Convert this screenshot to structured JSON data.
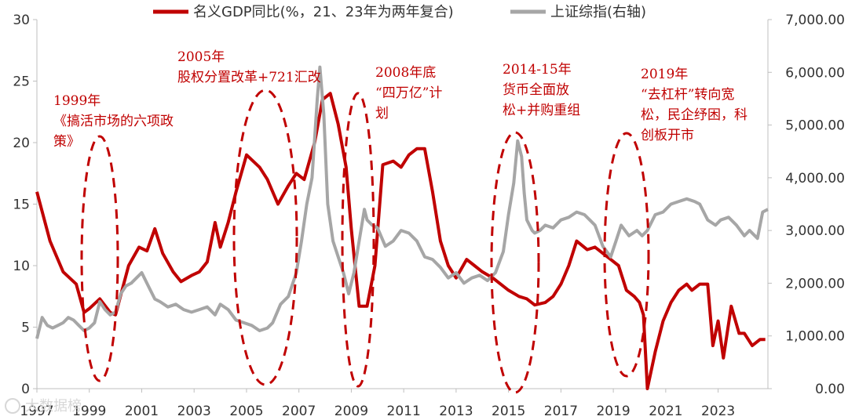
{
  "chart_data": {
    "type": "line",
    "title": "",
    "xlabel": "",
    "ylabel": "",
    "x_ticks": [
      "1997",
      "1999",
      "2001",
      "2003",
      "2005",
      "2007",
      "2009",
      "2011",
      "2013",
      "2015",
      "2017",
      "2019",
      "2021",
      "2023"
    ],
    "y_left_ticks": [
      "0",
      "5",
      "10",
      "15",
      "20",
      "25",
      "30"
    ],
    "y_right_ticks": [
      "0.00",
      "1,000.00",
      "2,000.00",
      "3,000.00",
      "4,000.00",
      "5,000.00",
      "6,000.00",
      "7,000.00"
    ],
    "ylim_left": [
      0,
      30
    ],
    "ylim_right": [
      0,
      7000
    ],
    "xlim": [
      1997.0,
      2024.9
    ],
    "series": [
      {
        "name": "名义GDP同比(%，21、23年为两年复合)",
        "axis": "left",
        "color": "#c00000",
        "x": [
          1997.0,
          1997.5,
          1998.0,
          1998.5,
          1998.8,
          1999.0,
          1999.4,
          1999.8,
          2000.0,
          2000.5,
          2000.9,
          2001.2,
          2001.5,
          2001.8,
          2002.2,
          2002.5,
          2002.9,
          2003.2,
          2003.5,
          2003.8,
          2004.0,
          2004.3,
          2004.6,
          2005.0,
          2005.5,
          2005.8,
          2006.2,
          2006.6,
          2006.9,
          2007.2,
          2007.6,
          2007.9,
          2008.2,
          2008.5,
          2008.8,
          2009.0,
          2009.3,
          2009.6,
          2009.9,
          2010.2,
          2010.6,
          2010.9,
          2011.2,
          2011.5,
          2011.8,
          2012.1,
          2012.4,
          2012.7,
          2013.0,
          2013.4,
          2013.7,
          2014.0,
          2014.4,
          2014.7,
          2015.0,
          2015.4,
          2015.7,
          2016.0,
          2016.4,
          2016.7,
          2017.0,
          2017.3,
          2017.6,
          2018.0,
          2018.3,
          2018.6,
          2018.9,
          2019.2,
          2019.5,
          2019.8,
          2020.0,
          2020.15,
          2020.3,
          2020.6,
          2020.9,
          2021.2,
          2021.5,
          2021.8,
          2022.0,
          2022.3,
          2022.6,
          2022.8,
          2023.0,
          2023.2,
          2023.5,
          2023.8,
          2024.0,
          2024.3,
          2024.6,
          2024.8
        ],
        "values": [
          16,
          12,
          9.5,
          8.5,
          6.2,
          6.5,
          7.3,
          6.2,
          6,
          10,
          11.5,
          11.2,
          13,
          11,
          9.5,
          8.7,
          9.2,
          9.5,
          10.3,
          13.5,
          11.5,
          13.5,
          16,
          19,
          18,
          17,
          15,
          16.5,
          17.5,
          17,
          20,
          23.5,
          24,
          21.5,
          18,
          13,
          6.7,
          6.7,
          10,
          18.2,
          18.5,
          18,
          19,
          19.5,
          19.5,
          16,
          12,
          10,
          9,
          10.5,
          10,
          9.5,
          9,
          8.5,
          8,
          7.5,
          7.3,
          6.8,
          7,
          7.5,
          8.5,
          10,
          12,
          11.3,
          11.5,
          11,
          10.5,
          10,
          8,
          7.5,
          7,
          6,
          0,
          3,
          5.5,
          7,
          8,
          8.5,
          8,
          8.5,
          8.5,
          3.5,
          5.5,
          2.5,
          6.7,
          4.5,
          4.5,
          3.5,
          4,
          4
        ]
      },
      {
        "name": "上证综指(右轴)",
        "axis": "right",
        "color": "#a6a6a6",
        "x": [
          1997.0,
          1997.2,
          1997.4,
          1997.6,
          1997.8,
          1998.0,
          1998.2,
          1998.4,
          1998.6,
          1998.8,
          1999.0,
          1999.2,
          1999.4,
          1999.6,
          1999.8,
          2000.0,
          2000.2,
          2000.4,
          2000.6,
          2000.8,
          2001.0,
          2001.3,
          2001.5,
          2001.7,
          2002.0,
          2002.3,
          2002.6,
          2002.9,
          2003.2,
          2003.5,
          2003.8,
          2004.0,
          2004.3,
          2004.6,
          2004.9,
          2005.2,
          2005.5,
          2005.8,
          2006.0,
          2006.3,
          2006.6,
          2006.9,
          2007.1,
          2007.3,
          2007.5,
          2007.7,
          2007.8,
          2007.95,
          2008.1,
          2008.3,
          2008.5,
          2008.7,
          2008.9,
          2009.1,
          2009.3,
          2009.5,
          2009.6,
          2009.8,
          2010.0,
          2010.3,
          2010.6,
          2010.9,
          2011.2,
          2011.5,
          2011.8,
          2012.1,
          2012.4,
          2012.7,
          2013.0,
          2013.3,
          2013.6,
          2013.9,
          2014.2,
          2014.5,
          2014.8,
          2015.0,
          2015.2,
          2015.35,
          2015.5,
          2015.6,
          2015.7,
          2015.9,
          2016.0,
          2016.2,
          2016.4,
          2016.7,
          2017.0,
          2017.3,
          2017.6,
          2017.9,
          2018.1,
          2018.3,
          2018.6,
          2018.9,
          2019.1,
          2019.3,
          2019.6,
          2019.9,
          2020.1,
          2020.3,
          2020.6,
          2020.9,
          2021.2,
          2021.5,
          2021.8,
          2022.1,
          2022.3,
          2022.6,
          2022.9,
          2023.1,
          2023.4,
          2023.7,
          2024.0,
          2024.2,
          2024.5,
          2024.7,
          2024.9
        ],
        "values": [
          950,
          1350,
          1200,
          1150,
          1200,
          1250,
          1350,
          1300,
          1200,
          1100,
          1150,
          1250,
          1650,
          1500,
          1400,
          1450,
          1800,
          1950,
          2000,
          2100,
          2200,
          1900,
          1700,
          1650,
          1550,
          1600,
          1500,
          1450,
          1500,
          1550,
          1400,
          1600,
          1500,
          1300,
          1250,
          1200,
          1100,
          1150,
          1250,
          1600,
          1750,
          2200,
          2800,
          3500,
          4000,
          5500,
          6100,
          5200,
          3500,
          2800,
          2500,
          2200,
          1800,
          2200,
          2800,
          3400,
          3200,
          3100,
          3050,
          2700,
          2800,
          3000,
          2950,
          2800,
          2500,
          2450,
          2300,
          2100,
          2200,
          2000,
          2100,
          2150,
          2050,
          2200,
          2600,
          3300,
          3900,
          4700,
          4400,
          3700,
          3200,
          3000,
          2950,
          3000,
          3100,
          3050,
          3200,
          3250,
          3350,
          3300,
          3200,
          3100,
          2700,
          2500,
          2800,
          3100,
          2900,
          3000,
          2900,
          3000,
          3300,
          3350,
          3500,
          3550,
          3600,
          3550,
          3500,
          3200,
          3100,
          3200,
          3250,
          3100,
          2900,
          3000,
          2850,
          3350,
          3400
        ]
      }
    ],
    "legend_position": "top",
    "annotations": [
      {
        "lines": [
          "1999年",
          "《搞活市场的六项政",
          "策》"
        ]
      },
      {
        "lines": [
          "2005年",
          "股权分置改革+721汇改"
        ]
      },
      {
        "lines": [
          "2008年底",
          "“四万亿”计",
          "划"
        ]
      },
      {
        "lines": [
          "2014-15年",
          "货币全面放",
          "松+并购重组"
        ]
      },
      {
        "lines": [
          "2019年",
          "“去杠杆”转向宽",
          "松，民企纾困，科",
          "创板开市"
        ]
      }
    ],
    "watermark": "大数据榜"
  }
}
